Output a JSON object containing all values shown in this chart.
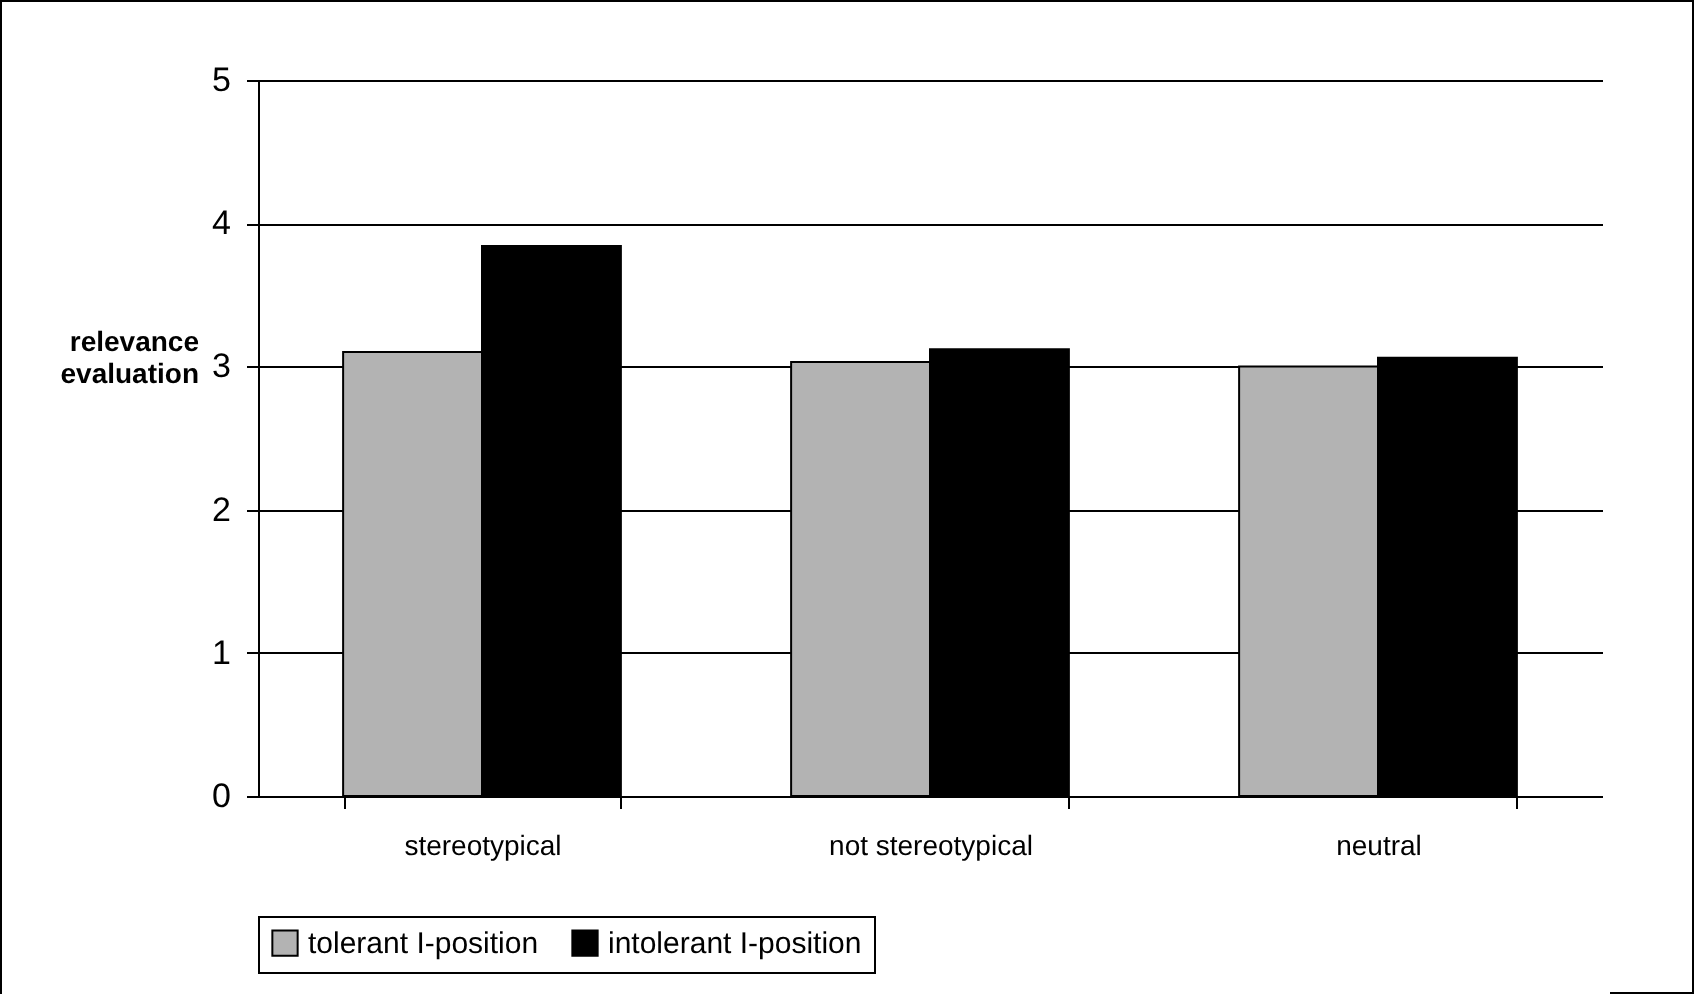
{
  "chart_data": {
    "type": "bar",
    "ylabel": "relevance evaluation",
    "categories": [
      "stereotypical",
      "not stereotypical",
      "neutral"
    ],
    "series": [
      {
        "name": "tolerant I-position",
        "color": "#b3b3b3",
        "values": [
          3.1,
          3.03,
          3.0
        ]
      },
      {
        "name": "intolerant I-position",
        "color": "#000000",
        "values": [
          3.84,
          3.12,
          3.06
        ]
      }
    ],
    "ylim": [
      0,
      5
    ],
    "yticks": [
      0,
      1,
      2,
      3,
      4,
      5
    ],
    "grid": "y",
    "legend": "bottom"
  }
}
